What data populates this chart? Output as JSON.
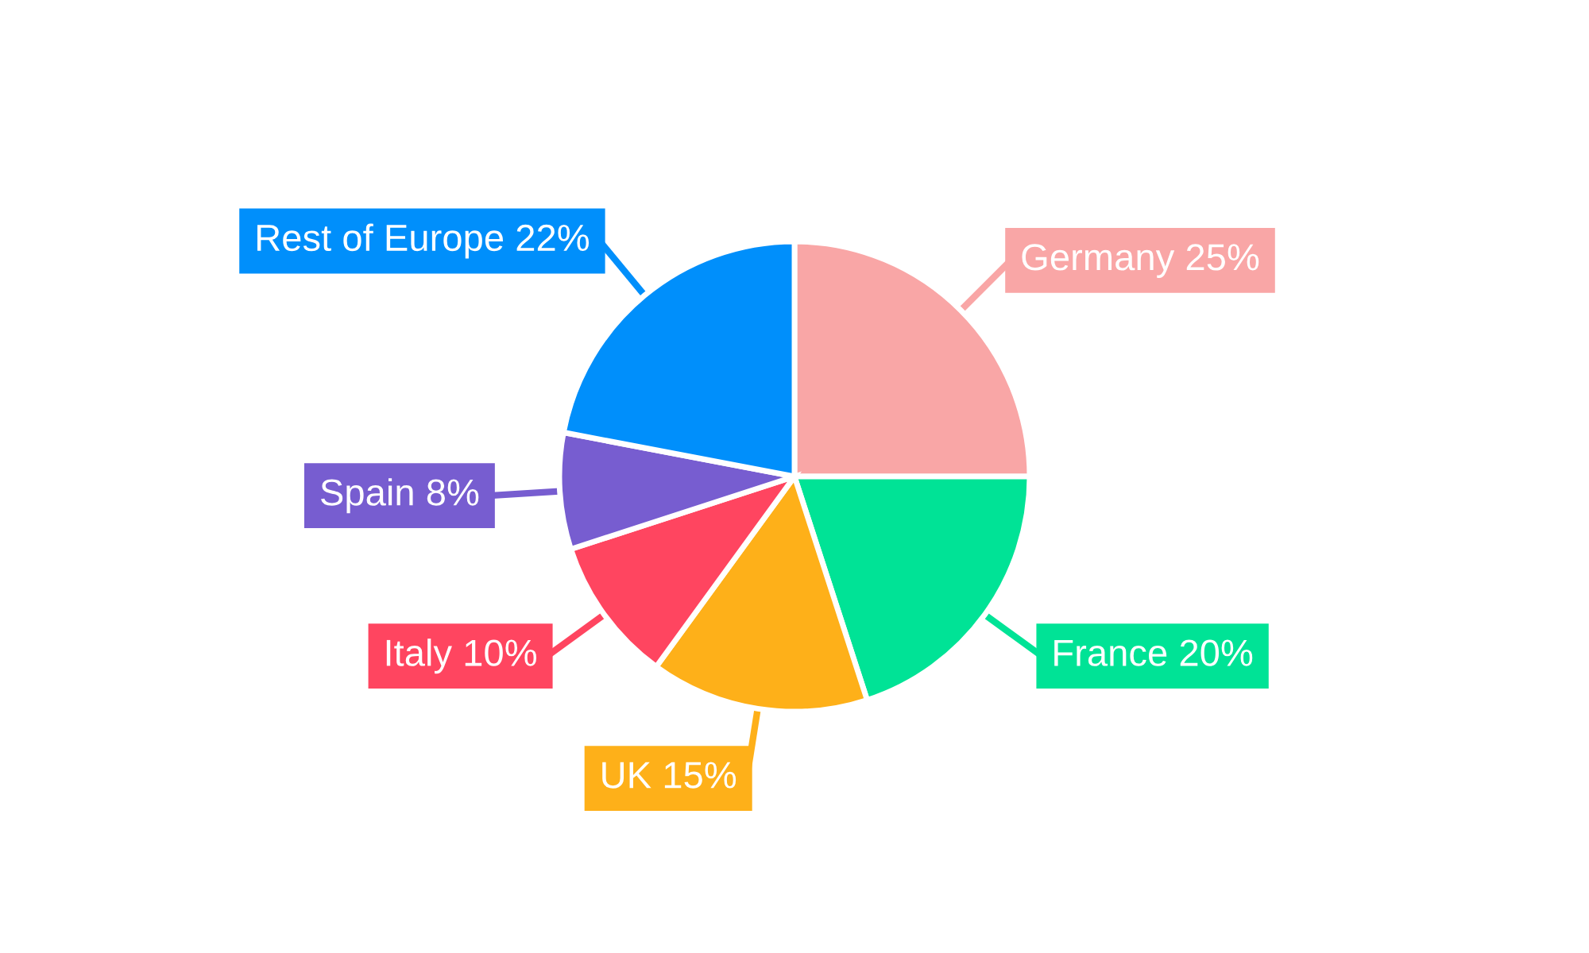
{
  "chart_data": {
    "type": "pie",
    "categories": [
      "Germany",
      "France",
      "UK",
      "Italy",
      "Spain",
      "Rest of Europe"
    ],
    "values": [
      25,
      20,
      15,
      10,
      8,
      22
    ],
    "value_labels": [
      "25%",
      "20%",
      "15%",
      "10%",
      "8%",
      "22%"
    ],
    "colors": [
      "#f9a6a6",
      "#00e396",
      "#feb019",
      "#ff4560",
      "#775dd0",
      "#008ffb"
    ],
    "legend": false
  }
}
